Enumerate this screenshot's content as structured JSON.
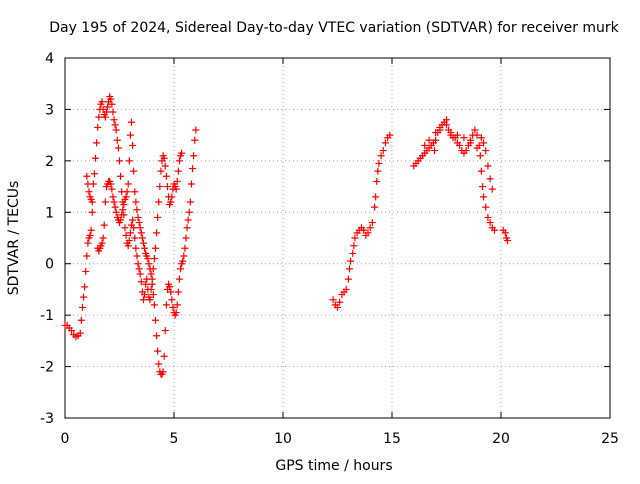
{
  "chart_data": {
    "type": "scatter",
    "title": "Day 195 of 2024, Sidereal Day-to-day VTEC variation (SDTVAR) for receiver murk",
    "xlabel": "GPS time / hours",
    "ylabel": "SDTVAR / TECUs",
    "xlim": [
      0,
      25
    ],
    "ylim": [
      -3,
      4
    ],
    "xticks": [
      0,
      5,
      10,
      15,
      20,
      25
    ],
    "yticks": [
      -3,
      -2,
      -1,
      0,
      1,
      2,
      3,
      4
    ],
    "grid": true,
    "marker": "+",
    "series": [
      {
        "name": "SDTVAR",
        "color": "#ff0000",
        "points": [
          [
            0.0,
            -1.2
          ],
          [
            0.1,
            -1.2
          ],
          [
            0.2,
            -1.25
          ],
          [
            0.3,
            -1.3
          ],
          [
            0.4,
            -1.38
          ],
          [
            0.5,
            -1.42
          ],
          [
            0.6,
            -1.4
          ],
          [
            0.7,
            -1.35
          ],
          [
            0.75,
            -1.1
          ],
          [
            0.8,
            -0.85
          ],
          [
            0.85,
            -0.65
          ],
          [
            0.9,
            -0.45
          ],
          [
            0.95,
            -0.15
          ],
          [
            1.0,
            0.15
          ],
          [
            1.05,
            0.4
          ],
          [
            1.1,
            0.5
          ],
          [
            1.15,
            0.55
          ],
          [
            1.2,
            0.65
          ],
          [
            1.25,
            1.0
          ],
          [
            1.3,
            1.55
          ],
          [
            1.35,
            1.75
          ],
          [
            1.4,
            2.05
          ],
          [
            1.45,
            2.35
          ],
          [
            1.5,
            2.65
          ],
          [
            1.55,
            2.85
          ],
          [
            1.6,
            3.0
          ],
          [
            1.65,
            3.1
          ],
          [
            1.7,
            3.15
          ],
          [
            1.75,
            3.0
          ],
          [
            1.8,
            2.9
          ],
          [
            1.85,
            2.85
          ],
          [
            1.9,
            2.95
          ],
          [
            1.95,
            3.05
          ],
          [
            2.0,
            3.15
          ],
          [
            2.05,
            3.25
          ],
          [
            2.1,
            3.2
          ],
          [
            2.15,
            3.1
          ],
          [
            2.2,
            2.95
          ],
          [
            2.25,
            2.8
          ],
          [
            2.3,
            2.7
          ],
          [
            2.35,
            2.6
          ],
          [
            2.4,
            2.4
          ],
          [
            2.45,
            2.25
          ],
          [
            2.5,
            2.0
          ],
          [
            2.55,
            1.7
          ],
          [
            2.6,
            1.4
          ],
          [
            2.65,
            1.2
          ],
          [
            2.7,
            0.95
          ],
          [
            2.75,
            0.7
          ],
          [
            2.8,
            0.55
          ],
          [
            2.85,
            0.4
          ],
          [
            2.9,
            0.35
          ],
          [
            2.95,
            0.45
          ],
          [
            3.0,
            0.6
          ],
          [
            3.05,
            0.75
          ],
          [
            3.1,
            0.85
          ],
          [
            3.15,
            0.7
          ],
          [
            3.2,
            0.5
          ],
          [
            3.25,
            0.3
          ],
          [
            3.3,
            0.15
          ],
          [
            3.35,
            0.0
          ],
          [
            3.4,
            -0.1
          ],
          [
            3.45,
            -0.2
          ],
          [
            3.5,
            -0.35
          ],
          [
            3.55,
            -0.55
          ],
          [
            3.6,
            -0.7
          ],
          [
            3.65,
            -0.6
          ],
          [
            3.7,
            -0.4
          ],
          [
            3.75,
            -0.3
          ],
          [
            3.8,
            -0.5
          ],
          [
            3.85,
            -0.65
          ],
          [
            3.9,
            -0.7
          ],
          [
            3.95,
            -0.5
          ],
          [
            4.0,
            -0.3
          ],
          [
            4.05,
            -0.1
          ],
          [
            4.1,
            0.1
          ],
          [
            4.15,
            0.3
          ],
          [
            4.2,
            0.6
          ],
          [
            4.25,
            0.9
          ],
          [
            4.3,
            1.2
          ],
          [
            4.35,
            1.5
          ],
          [
            4.4,
            1.8
          ],
          [
            4.45,
            2.0
          ],
          [
            4.5,
            2.1
          ],
          [
            4.55,
            2.05
          ],
          [
            4.6,
            1.9
          ],
          [
            4.65,
            1.7
          ],
          [
            4.7,
            1.5
          ],
          [
            4.75,
            1.3
          ],
          [
            4.8,
            1.15
          ],
          [
            4.85,
            1.2
          ],
          [
            4.9,
            1.3
          ],
          [
            4.95,
            1.45
          ],
          [
            5.0,
            1.55
          ],
          [
            5.05,
            1.5
          ],
          [
            5.1,
            1.45
          ],
          [
            5.15,
            1.6
          ],
          [
            5.2,
            1.8
          ],
          [
            5.25,
            2.0
          ],
          [
            5.3,
            2.1
          ],
          [
            5.35,
            2.15
          ],
          [
            1.0,
            1.7
          ],
          [
            1.05,
            1.55
          ],
          [
            1.1,
            1.4
          ],
          [
            1.15,
            1.3
          ],
          [
            1.2,
            1.25
          ],
          [
            1.25,
            1.2
          ],
          [
            1.5,
            0.3
          ],
          [
            1.55,
            0.25
          ],
          [
            1.6,
            0.3
          ],
          [
            1.65,
            0.35
          ],
          [
            1.7,
            0.4
          ],
          [
            1.75,
            0.5
          ],
          [
            1.8,
            0.75
          ],
          [
            1.85,
            1.2
          ],
          [
            1.9,
            1.5
          ],
          [
            1.95,
            1.55
          ],
          [
            2.0,
            1.6
          ],
          [
            2.05,
            1.6
          ],
          [
            2.1,
            1.55
          ],
          [
            2.15,
            1.45
          ],
          [
            2.2,
            1.3
          ],
          [
            2.25,
            1.2
          ],
          [
            2.3,
            1.1
          ],
          [
            2.35,
            1.0
          ],
          [
            2.4,
            0.9
          ],
          [
            2.45,
            0.85
          ],
          [
            2.5,
            0.8
          ],
          [
            2.55,
            0.85
          ],
          [
            2.6,
            0.95
          ],
          [
            2.65,
            1.05
          ],
          [
            2.7,
            1.15
          ],
          [
            2.75,
            1.25
          ],
          [
            2.8,
            1.3
          ],
          [
            2.85,
            1.4
          ],
          [
            2.9,
            1.55
          ],
          [
            2.95,
            2.0
          ],
          [
            3.0,
            2.5
          ],
          [
            3.05,
            2.75
          ],
          [
            3.1,
            2.3
          ],
          [
            3.15,
            1.8
          ],
          [
            3.2,
            1.4
          ],
          [
            3.25,
            1.2
          ],
          [
            3.3,
            1.05
          ],
          [
            3.35,
            0.9
          ],
          [
            3.4,
            0.8
          ],
          [
            3.45,
            0.7
          ],
          [
            3.5,
            0.6
          ],
          [
            3.55,
            0.5
          ],
          [
            3.6,
            0.4
          ],
          [
            3.65,
            0.3
          ],
          [
            3.7,
            0.2
          ],
          [
            3.75,
            0.15
          ],
          [
            3.8,
            0.1
          ],
          [
            3.85,
            0.0
          ],
          [
            3.9,
            -0.1
          ],
          [
            3.95,
            -0.2
          ],
          [
            4.0,
            -0.4
          ],
          [
            4.05,
            -0.6
          ],
          [
            4.1,
            -0.8
          ],
          [
            4.15,
            -1.1
          ],
          [
            4.2,
            -1.4
          ],
          [
            4.25,
            -1.7
          ],
          [
            4.3,
            -1.95
          ],
          [
            4.35,
            -2.1
          ],
          [
            4.4,
            -2.15
          ],
          [
            4.45,
            -2.15
          ],
          [
            4.5,
            -2.1
          ],
          [
            4.55,
            -1.8
          ],
          [
            4.6,
            -1.3
          ],
          [
            4.65,
            -0.8
          ],
          [
            4.7,
            -0.5
          ],
          [
            4.75,
            -0.4
          ],
          [
            4.8,
            -0.45
          ],
          [
            4.85,
            -0.55
          ],
          [
            4.9,
            -0.7
          ],
          [
            4.95,
            -0.85
          ],
          [
            5.0,
            -0.95
          ],
          [
            5.05,
            -1.0
          ],
          [
            5.1,
            -0.95
          ],
          [
            5.15,
            -0.8
          ],
          [
            5.2,
            -0.55
          ],
          [
            5.25,
            -0.3
          ],
          [
            5.3,
            -0.1
          ],
          [
            5.35,
            0.0
          ],
          [
            5.4,
            0.05
          ],
          [
            5.45,
            0.15
          ],
          [
            5.5,
            0.3
          ],
          [
            5.55,
            0.5
          ],
          [
            5.6,
            0.7
          ],
          [
            5.65,
            0.85
          ],
          [
            5.7,
            1.0
          ],
          [
            5.75,
            1.2
          ],
          [
            5.8,
            1.55
          ],
          [
            5.85,
            1.85
          ],
          [
            5.9,
            2.1
          ],
          [
            5.95,
            2.4
          ],
          [
            6.0,
            2.6
          ],
          [
            12.3,
            -0.7
          ],
          [
            12.4,
            -0.8
          ],
          [
            12.5,
            -0.85
          ],
          [
            12.6,
            -0.75
          ],
          [
            12.7,
            -0.6
          ],
          [
            12.8,
            -0.55
          ],
          [
            12.9,
            -0.5
          ],
          [
            13.0,
            -0.3
          ],
          [
            13.05,
            -0.1
          ],
          [
            13.1,
            0.05
          ],
          [
            13.2,
            0.2
          ],
          [
            13.25,
            0.35
          ],
          [
            13.3,
            0.5
          ],
          [
            13.4,
            0.6
          ],
          [
            13.5,
            0.65
          ],
          [
            13.6,
            0.7
          ],
          [
            13.7,
            0.65
          ],
          [
            13.8,
            0.55
          ],
          [
            13.9,
            0.6
          ],
          [
            14.0,
            0.7
          ],
          [
            14.1,
            0.8
          ],
          [
            14.2,
            1.1
          ],
          [
            14.25,
            1.3
          ],
          [
            14.3,
            1.6
          ],
          [
            14.35,
            1.8
          ],
          [
            14.4,
            1.95
          ],
          [
            14.5,
            2.1
          ],
          [
            14.6,
            2.2
          ],
          [
            14.7,
            2.35
          ],
          [
            14.8,
            2.45
          ],
          [
            14.9,
            2.5
          ],
          [
            16.0,
            1.9
          ],
          [
            16.1,
            1.95
          ],
          [
            16.2,
            2.0
          ],
          [
            16.3,
            2.05
          ],
          [
            16.4,
            2.1
          ],
          [
            16.5,
            2.15
          ],
          [
            16.6,
            2.2
          ],
          [
            16.7,
            2.25
          ],
          [
            16.8,
            2.3
          ],
          [
            16.9,
            2.35
          ],
          [
            16.95,
            2.2
          ],
          [
            17.0,
            2.4
          ],
          [
            17.1,
            2.55
          ],
          [
            17.2,
            2.6
          ],
          [
            17.3,
            2.7
          ],
          [
            17.4,
            2.75
          ],
          [
            17.5,
            2.7
          ],
          [
            17.6,
            2.6
          ],
          [
            17.7,
            2.5
          ],
          [
            17.8,
            2.45
          ],
          [
            17.9,
            2.45
          ],
          [
            18.0,
            2.35
          ],
          [
            18.1,
            2.3
          ],
          [
            18.2,
            2.2
          ],
          [
            18.3,
            2.15
          ],
          [
            18.4,
            2.2
          ],
          [
            18.5,
            2.3
          ],
          [
            18.6,
            2.4
          ],
          [
            18.7,
            2.5
          ],
          [
            18.8,
            2.6
          ],
          [
            18.9,
            2.5
          ],
          [
            19.0,
            2.3
          ],
          [
            19.05,
            2.1
          ],
          [
            19.1,
            1.8
          ],
          [
            19.15,
            1.5
          ],
          [
            19.2,
            1.3
          ],
          [
            19.3,
            1.1
          ],
          [
            19.4,
            0.9
          ],
          [
            19.5,
            0.8
          ],
          [
            19.6,
            0.7
          ],
          [
            19.7,
            0.65
          ],
          [
            16.5,
            2.3
          ],
          [
            16.7,
            2.4
          ],
          [
            17.0,
            2.55
          ],
          [
            17.2,
            2.65
          ],
          [
            17.5,
            2.8
          ],
          [
            17.7,
            2.55
          ],
          [
            18.0,
            2.5
          ],
          [
            18.3,
            2.45
          ],
          [
            18.6,
            2.35
          ],
          [
            18.9,
            2.25
          ],
          [
            19.1,
            2.45
          ],
          [
            19.2,
            2.35
          ],
          [
            19.3,
            2.2
          ],
          [
            19.4,
            1.9
          ],
          [
            19.5,
            1.65
          ],
          [
            19.6,
            1.45
          ],
          [
            20.1,
            0.65
          ],
          [
            20.2,
            0.6
          ],
          [
            20.25,
            0.5
          ],
          [
            20.3,
            0.45
          ]
        ]
      }
    ]
  }
}
